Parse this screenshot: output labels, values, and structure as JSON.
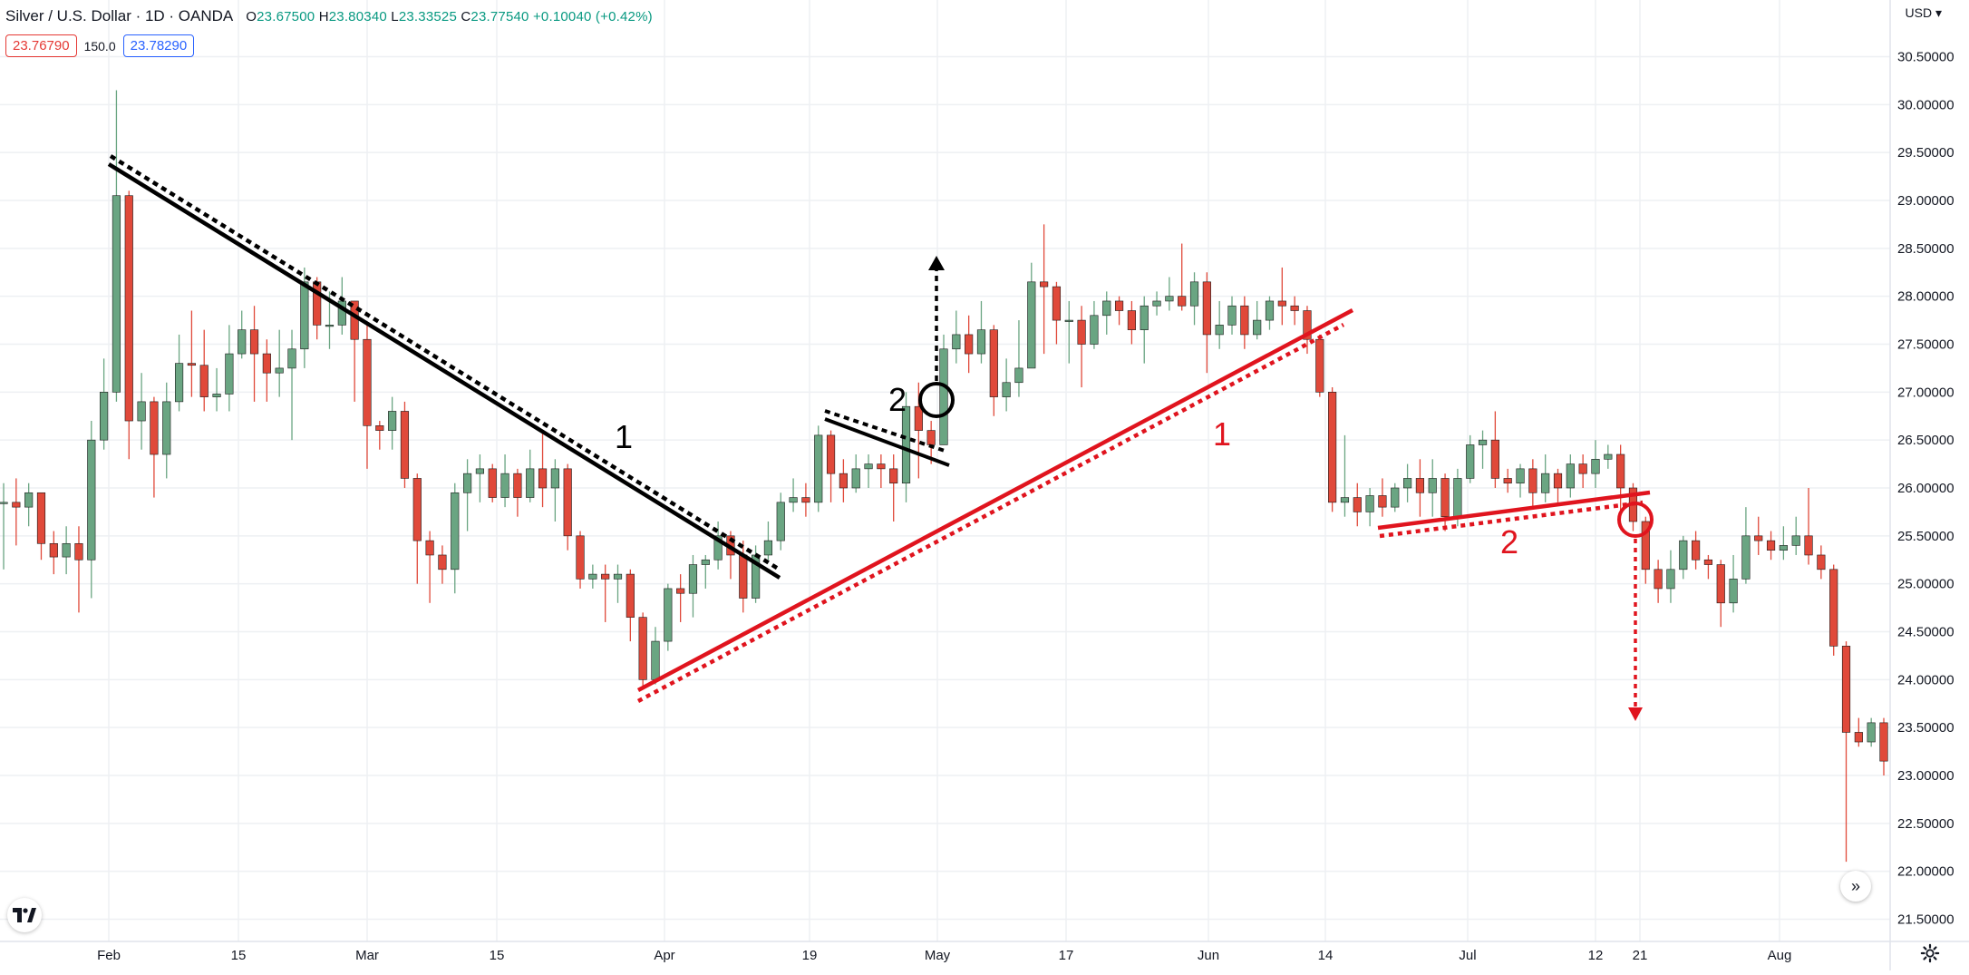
{
  "header": {
    "symbol": "Silver / U.S. Dollar · 1D · OANDA",
    "open_label": "O",
    "open": "23.67500",
    "high_label": "H",
    "high": "23.80340",
    "low_label": "L",
    "low": "23.33525",
    "close_label": "C",
    "close": "23.77540",
    "change": "+0.10040 (+0.42%)"
  },
  "quote": {
    "bid": "23.76790",
    "spread": "150.0",
    "ask": "23.78290"
  },
  "currency": "USD",
  "colors": {
    "up": "#6aa582",
    "down": "#e0493a",
    "black_line": "#000000",
    "red_line": "#e0141e",
    "grid": "#eef0f3"
  },
  "icons": {
    "logo": "tradingview-logo-icon",
    "scroll": "double-chevron-right-icon",
    "settings": "gear-icon"
  },
  "chart_data": {
    "type": "candlestick",
    "ylim": [
      21.3,
      30.6
    ],
    "y_ticks": [
      "30.50000",
      "30.00000",
      "29.50000",
      "29.00000",
      "28.50000",
      "28.00000",
      "27.50000",
      "27.00000",
      "26.50000",
      "26.00000",
      "25.50000",
      "25.00000",
      "24.50000",
      "24.00000",
      "23.50000",
      "23.00000",
      "22.50000",
      "22.00000",
      "21.50000"
    ],
    "x_ticks": [
      "Feb",
      "15",
      "Mar",
      "15",
      "Apr",
      "19",
      "May",
      "17",
      "Jun",
      "14",
      "Jul",
      "12",
      "21",
      "Aug"
    ],
    "annotations": {
      "black_1": "1",
      "black_2": "2",
      "red_1": "1",
      "red_2": "2"
    },
    "candles": [
      [
        25.85,
        25.85,
        26.05,
        25.15
      ],
      [
        25.85,
        25.8,
        26.1,
        25.4
      ],
      [
        25.8,
        25.95,
        26.05,
        25.6
      ],
      [
        25.95,
        25.42,
        25.95,
        25.25
      ],
      [
        25.42,
        25.28,
        25.55,
        25.1
      ],
      [
        25.28,
        25.42,
        25.6,
        25.1
      ],
      [
        25.42,
        25.25,
        25.6,
        24.7
      ],
      [
        25.25,
        26.5,
        26.7,
        24.85
      ],
      [
        26.5,
        27.0,
        27.35,
        26.4
      ],
      [
        27.0,
        29.05,
        30.15,
        26.9
      ],
      [
        29.05,
        26.7,
        29.1,
        26.3
      ],
      [
        26.7,
        26.9,
        27.2,
        26.4
      ],
      [
        26.9,
        26.35,
        26.95,
        25.9
      ],
      [
        26.35,
        26.9,
        27.1,
        26.1
      ],
      [
        26.9,
        27.3,
        27.6,
        26.8
      ],
      [
        27.3,
        27.28,
        27.85,
        26.95
      ],
      [
        27.28,
        26.95,
        27.65,
        26.8
      ],
      [
        26.95,
        26.98,
        27.25,
        26.8
      ],
      [
        26.98,
        27.4,
        27.7,
        26.8
      ],
      [
        27.4,
        27.65,
        27.85,
        27.35
      ],
      [
        27.65,
        27.4,
        27.9,
        26.9
      ],
      [
        27.4,
        27.2,
        27.55,
        26.9
      ],
      [
        27.2,
        27.25,
        27.65,
        26.95
      ],
      [
        27.25,
        27.45,
        27.65,
        26.5
      ],
      [
        27.45,
        28.15,
        28.3,
        27.25
      ],
      [
        28.15,
        27.7,
        28.2,
        27.55
      ],
      [
        27.7,
        27.7,
        28.05,
        27.45
      ],
      [
        27.7,
        27.95,
        28.2,
        27.6
      ],
      [
        27.95,
        27.55,
        27.95,
        26.9
      ],
      [
        27.55,
        26.65,
        27.7,
        26.2
      ],
      [
        26.65,
        26.6,
        26.7,
        26.4
      ],
      [
        26.6,
        26.8,
        26.95,
        26.4
      ],
      [
        26.8,
        26.1,
        26.9,
        26.0
      ],
      [
        26.1,
        25.45,
        26.15,
        25.0
      ],
      [
        25.45,
        25.3,
        25.55,
        24.8
      ],
      [
        25.3,
        25.15,
        25.4,
        25.0
      ],
      [
        25.15,
        25.95,
        26.05,
        24.9
      ],
      [
        25.95,
        26.15,
        26.3,
        25.55
      ],
      [
        26.15,
        26.2,
        26.35,
        25.85
      ],
      [
        26.2,
        25.9,
        26.25,
        25.85
      ],
      [
        25.9,
        26.15,
        26.35,
        25.8
      ],
      [
        26.15,
        25.9,
        26.2,
        25.7
      ],
      [
        25.9,
        26.2,
        26.4,
        25.85
      ],
      [
        26.2,
        26.0,
        26.6,
        25.8
      ],
      [
        26.0,
        26.2,
        26.3,
        25.65
      ],
      [
        26.2,
        25.5,
        26.25,
        25.35
      ],
      [
        25.5,
        25.05,
        25.55,
        24.95
      ],
      [
        25.05,
        25.1,
        25.2,
        24.95
      ],
      [
        25.1,
        25.05,
        25.2,
        24.6
      ],
      [
        25.05,
        25.1,
        25.2,
        24.8
      ],
      [
        25.1,
        24.65,
        25.15,
        24.4
      ],
      [
        24.65,
        24.0,
        24.7,
        23.9
      ],
      [
        24.0,
        24.4,
        24.55,
        23.95
      ],
      [
        24.4,
        24.95,
        25.0,
        24.3
      ],
      [
        24.95,
        24.9,
        25.1,
        24.6
      ],
      [
        24.9,
        25.2,
        25.3,
        24.65
      ],
      [
        25.2,
        25.25,
        25.3,
        24.95
      ],
      [
        25.25,
        25.5,
        25.65,
        25.15
      ],
      [
        25.5,
        25.3,
        25.55,
        25.05
      ],
      [
        25.3,
        24.85,
        25.45,
        24.7
      ],
      [
        24.85,
        25.3,
        25.4,
        24.8
      ],
      [
        25.3,
        25.45,
        25.65,
        25.25
      ],
      [
        25.45,
        25.85,
        25.95,
        25.35
      ],
      [
        25.85,
        25.9,
        26.1,
        25.75
      ],
      [
        25.9,
        25.85,
        26.05,
        25.7
      ],
      [
        25.85,
        26.55,
        26.65,
        25.75
      ],
      [
        26.55,
        26.15,
        26.6,
        25.85
      ],
      [
        26.15,
        26.0,
        26.3,
        25.85
      ],
      [
        26.0,
        26.2,
        26.35,
        25.95
      ],
      [
        26.2,
        26.25,
        26.35,
        26.0
      ],
      [
        26.25,
        26.2,
        26.35,
        26.0
      ],
      [
        26.2,
        26.05,
        26.35,
        25.65
      ],
      [
        26.05,
        26.85,
        27.0,
        25.85
      ],
      [
        26.85,
        26.6,
        27.1,
        26.1
      ],
      [
        26.6,
        26.45,
        26.7,
        26.25
      ],
      [
        26.45,
        27.45,
        27.6,
        26.45
      ],
      [
        27.45,
        27.6,
        27.85,
        27.3
      ],
      [
        27.6,
        27.4,
        27.8,
        27.2
      ],
      [
        27.4,
        27.65,
        27.95,
        27.3
      ],
      [
        27.65,
        26.95,
        27.7,
        26.75
      ],
      [
        26.95,
        27.1,
        27.35,
        26.8
      ],
      [
        27.1,
        27.25,
        27.75,
        26.95
      ],
      [
        27.25,
        28.15,
        28.35,
        27.3
      ],
      [
        28.15,
        28.1,
        28.75,
        27.4
      ],
      [
        28.1,
        27.75,
        28.15,
        27.5
      ],
      [
        27.75,
        27.75,
        27.95,
        27.3
      ],
      [
        27.75,
        27.5,
        27.9,
        27.05
      ],
      [
        27.5,
        27.8,
        27.95,
        27.45
      ],
      [
        27.8,
        27.95,
        28.05,
        27.6
      ],
      [
        27.95,
        27.85,
        28.0,
        27.7
      ],
      [
        27.85,
        27.65,
        27.95,
        27.5
      ],
      [
        27.65,
        27.9,
        28.0,
        27.3
      ],
      [
        27.9,
        27.95,
        28.05,
        27.8
      ],
      [
        27.95,
        28.0,
        28.2,
        27.85
      ],
      [
        28.0,
        27.9,
        28.55,
        27.85
      ],
      [
        27.9,
        28.15,
        28.25,
        27.7
      ],
      [
        28.15,
        27.6,
        28.25,
        27.2
      ],
      [
        27.6,
        27.7,
        27.95,
        27.45
      ],
      [
        27.7,
        27.9,
        28.0,
        27.6
      ],
      [
        27.9,
        27.6,
        28.0,
        27.45
      ],
      [
        27.6,
        27.75,
        27.95,
        27.55
      ],
      [
        27.75,
        27.95,
        28.0,
        27.65
      ],
      [
        27.95,
        27.9,
        28.3,
        27.7
      ],
      [
        27.9,
        27.85,
        28.0,
        27.7
      ],
      [
        27.85,
        27.55,
        27.9,
        27.4
      ],
      [
        27.55,
        27.0,
        27.6,
        26.95
      ],
      [
        27.0,
        25.85,
        27.05,
        25.75
      ],
      [
        25.85,
        25.9,
        26.55,
        25.7
      ],
      [
        25.9,
        25.75,
        26.05,
        25.6
      ],
      [
        25.75,
        25.92,
        26.0,
        25.6
      ],
      [
        25.92,
        25.8,
        26.1,
        25.7
      ],
      [
        25.8,
        26.0,
        26.05,
        25.75
      ],
      [
        26.0,
        26.1,
        26.25,
        25.85
      ],
      [
        26.1,
        25.95,
        26.3,
        25.7
      ],
      [
        25.95,
        26.1,
        26.3,
        25.7
      ],
      [
        26.1,
        25.7,
        26.15,
        25.55
      ],
      [
        25.7,
        26.1,
        26.2,
        25.6
      ],
      [
        26.1,
        26.45,
        26.55,
        26.05
      ],
      [
        26.45,
        26.5,
        26.6,
        26.2
      ],
      [
        26.5,
        26.1,
        26.8,
        26.0
      ],
      [
        26.1,
        26.05,
        26.2,
        25.95
      ],
      [
        26.05,
        26.2,
        26.25,
        25.9
      ],
      [
        26.2,
        25.95,
        26.3,
        25.8
      ],
      [
        25.95,
        26.15,
        26.35,
        25.85
      ],
      [
        26.15,
        26.0,
        26.2,
        25.85
      ],
      [
        26.0,
        26.25,
        26.35,
        25.9
      ],
      [
        26.25,
        26.15,
        26.35,
        26.0
      ],
      [
        26.15,
        26.3,
        26.5,
        26.0
      ],
      [
        26.3,
        26.35,
        26.45,
        26.2
      ],
      [
        26.35,
        26.0,
        26.45,
        25.75
      ],
      [
        26.0,
        25.65,
        26.05,
        25.55
      ],
      [
        25.65,
        25.15,
        25.7,
        25.0
      ],
      [
        25.15,
        24.95,
        25.25,
        24.8
      ],
      [
        24.95,
        25.15,
        25.35,
        24.8
      ],
      [
        25.15,
        25.45,
        25.5,
        25.05
      ],
      [
        25.45,
        25.25,
        25.55,
        25.15
      ],
      [
        25.25,
        25.2,
        25.3,
        25.05
      ],
      [
        25.2,
        24.8,
        25.25,
        24.55
      ],
      [
        24.8,
        25.05,
        25.3,
        24.7
      ],
      [
        25.05,
        25.5,
        25.8,
        25.0
      ],
      [
        25.5,
        25.45,
        25.7,
        25.3
      ],
      [
        25.45,
        25.35,
        25.55,
        25.25
      ],
      [
        25.35,
        25.4,
        25.6,
        25.25
      ],
      [
        25.4,
        25.5,
        25.7,
        25.3
      ],
      [
        25.5,
        25.3,
        26.0,
        25.2
      ],
      [
        25.3,
        25.15,
        25.4,
        25.05
      ],
      [
        25.15,
        24.35,
        25.2,
        24.25
      ],
      [
        24.35,
        23.45,
        24.4,
        22.1
      ],
      [
        23.45,
        23.35,
        23.6,
        23.3
      ],
      [
        23.35,
        23.55,
        23.6,
        23.3
      ],
      [
        23.55,
        23.15,
        23.6,
        23.0
      ]
    ]
  }
}
